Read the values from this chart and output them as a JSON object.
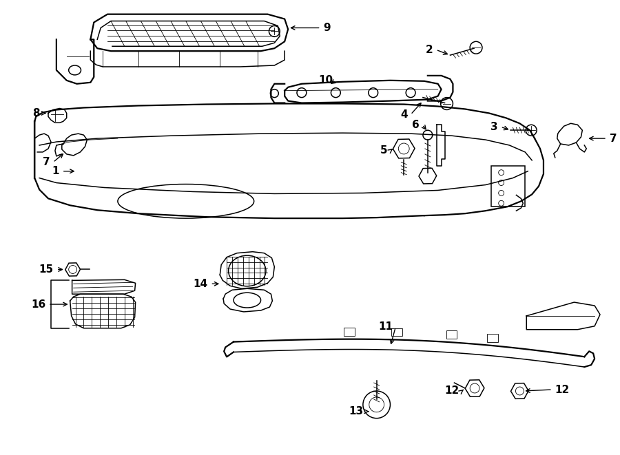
{
  "bg_color": "#ffffff",
  "line_color": "#000000",
  "fig_width": 9.0,
  "fig_height": 6.61,
  "lw_thick": 1.6,
  "lw_med": 1.1,
  "lw_thin": 0.6,
  "label_fontsize": 11
}
